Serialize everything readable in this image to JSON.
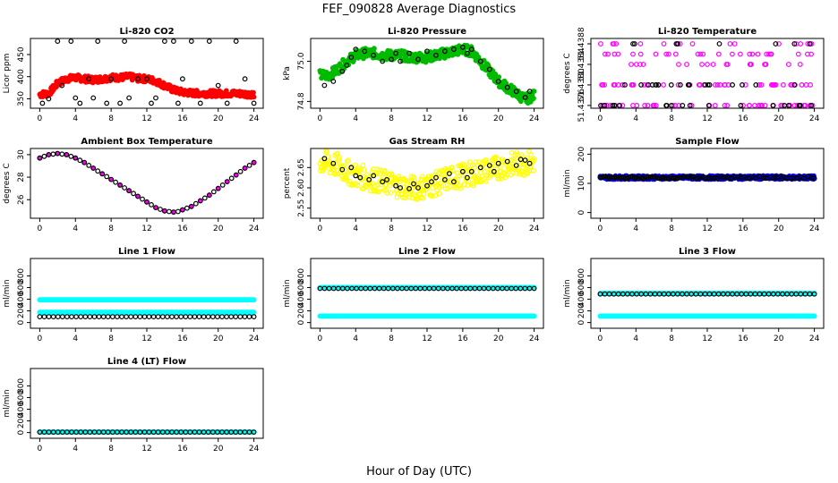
{
  "figure": {
    "title": "FEF_090828  Average Diagnostics",
    "xlabel": "Hour of Day (UTC)"
  },
  "chart_data": [
    {
      "type": "scatter",
      "title": "Li-820 CO2",
      "ylabel": "Licor ppm",
      "xlim": [
        0,
        24
      ],
      "ylim": [
        335,
        480
      ],
      "xticks": [
        "0",
        "4",
        "8",
        "12",
        "16",
        "20",
        "24"
      ],
      "yticks": [
        "350",
        "400",
        "450"
      ],
      "ytick_values": [
        350,
        400,
        450
      ],
      "series": [
        {
          "color": "#ff0000",
          "filled": true,
          "x": [
            0,
            1,
            2,
            3,
            4,
            5,
            6,
            7,
            8,
            9,
            10,
            11,
            12,
            13,
            14,
            15,
            16,
            17,
            18,
            19,
            20,
            21,
            22,
            23,
            24
          ],
          "y": [
            360,
            362,
            385,
            395,
            398,
            395,
            393,
            395,
            398,
            398,
            400,
            396,
            395,
            390,
            380,
            370,
            365,
            363,
            362,
            362,
            362,
            362,
            362,
            361,
            360
          ],
          "spread": 7
        },
        {
          "color": "#000000",
          "filled": false,
          "x": [
            0.3,
            1,
            2,
            2.5,
            3.5,
            4,
            4.5,
            5.5,
            6,
            6.5,
            7.5,
            8,
            9,
            9.5,
            10,
            11,
            12,
            12.5,
            13,
            14,
            15,
            15.5,
            16,
            17,
            18,
            19,
            20,
            21,
            22,
            23,
            24
          ],
          "y": [
            340,
            350,
            480,
            380,
            480,
            352,
            340,
            395,
            352,
            480,
            340,
            395,
            340,
            480,
            352,
            395,
            395,
            340,
            352,
            480,
            480,
            340,
            395,
            480,
            340,
            480,
            380,
            340,
            480,
            395,
            340
          ]
        }
      ]
    },
    {
      "type": "scatter",
      "title": "Li-820 Pressure",
      "ylabel": "kPa",
      "xlim": [
        0,
        24
      ],
      "ylim": [
        74.78,
        75.1
      ],
      "xticks": [
        "0",
        "4",
        "8",
        "12",
        "16",
        "20",
        "24"
      ],
      "yticks": [
        "74.8",
        "75.0"
      ],
      "ytick_values": [
        74.8,
        75.0
      ],
      "series": [
        {
          "color": "#00bb00",
          "filled": true,
          "x": [
            0,
            1,
            2,
            3,
            4,
            5,
            6,
            7,
            8,
            9,
            10,
            11,
            12,
            13,
            14,
            15,
            16,
            17,
            18,
            19,
            20,
            21,
            22,
            23,
            24
          ],
          "y": [
            74.93,
            74.93,
            74.96,
            75.0,
            75.03,
            75.04,
            75.04,
            75.03,
            75.03,
            75.03,
            75.02,
            75.02,
            75.02,
            75.03,
            75.04,
            75.05,
            75.06,
            75.05,
            75.0,
            74.95,
            74.9,
            74.87,
            74.84,
            74.81,
            74.83
          ],
          "spread": 0.025
        },
        {
          "color": "#000000",
          "filled": false,
          "x": [
            0.5,
            1.5,
            2.5,
            3,
            3.5,
            4,
            5,
            6,
            7,
            8,
            8.5,
            9,
            10,
            11,
            12,
            13,
            14,
            15,
            16,
            16.5,
            17,
            18,
            19,
            20,
            21,
            22,
            23,
            23.5
          ],
          "y": [
            74.88,
            74.9,
            74.95,
            74.98,
            75.02,
            75.06,
            75.05,
            75.03,
            75.0,
            75.01,
            75.04,
            75.0,
            75.04,
            75.01,
            75.05,
            75.03,
            75.05,
            75.06,
            75.07,
            75.04,
            75.06,
            75.0,
            74.96,
            74.9,
            74.87,
            74.85,
            74.82,
            74.85
          ]
        }
      ]
    },
    {
      "type": "scatter",
      "title": "Li-820 Temperature",
      "ylabel": "degrees C",
      "xlim": [
        0,
        24
      ],
      "ylim": [
        51.4376,
        51.43885
      ],
      "xticks": [
        "0",
        "4",
        "8",
        "12",
        "16",
        "20",
        "24"
      ],
      "yticks": [
        "51.4376",
        "51.4380",
        "51.4384",
        "51.4388"
      ],
      "ytick_values": [
        51.4376,
        51.438,
        51.4384,
        51.4388
      ],
      "series": [
        {
          "color": "#ff00ff",
          "filled": false,
          "levels": [
            51.4376,
            51.438,
            51.4384,
            51.4386,
            51.4388
          ]
        },
        {
          "color": "#000000",
          "filled": false,
          "levels": [
            51.4376,
            51.438,
            51.4388
          ]
        }
      ]
    },
    {
      "type": "scatter",
      "title": "Ambient Box Temperature",
      "ylabel": "degrees C",
      "xlim": [
        0,
        24
      ],
      "ylim": [
        24.6,
        30.3
      ],
      "xticks": [
        "0",
        "4",
        "8",
        "12",
        "16",
        "20",
        "24"
      ],
      "yticks": [
        "26",
        "28",
        "30"
      ],
      "ytick_values": [
        26,
        28,
        30
      ],
      "series": [
        {
          "color": "#ff00ff",
          "filled": true,
          "x": [
            0,
            1,
            2,
            3,
            4,
            5,
            6,
            7,
            8,
            9,
            10,
            11,
            12,
            13,
            14,
            15,
            16,
            17,
            18,
            19,
            20,
            21,
            22,
            23,
            24
          ],
          "y": [
            29.7,
            30.0,
            30.1,
            30.0,
            29.7,
            29.3,
            28.8,
            28.3,
            27.8,
            27.3,
            26.8,
            26.3,
            25.8,
            25.3,
            25.0,
            24.9,
            25.1,
            25.4,
            25.9,
            26.4,
            27.0,
            27.6,
            28.2,
            28.8,
            29.3
          ]
        },
        {
          "color": "#000000",
          "filled": false,
          "x": [
            0,
            0.5,
            1,
            1.5,
            2,
            2.5,
            3,
            3.5,
            4,
            4.5,
            5,
            5.5,
            6,
            6.5,
            7,
            7.5,
            8,
            8.5,
            9,
            9.5,
            10,
            10.5,
            11,
            11.5,
            12,
            12.5,
            13,
            13.5,
            14,
            14.5,
            15,
            15.5,
            16,
            16.5,
            17,
            17.5,
            18,
            18.5,
            19,
            19.5,
            20,
            20.5,
            21,
            21.5,
            22,
            22.5,
            23,
            23.5,
            24
          ],
          "y": [
            29.7,
            29.85,
            30.0,
            30.05,
            30.1,
            30.05,
            30.0,
            29.85,
            29.7,
            29.5,
            29.3,
            29.05,
            28.8,
            28.55,
            28.3,
            28.05,
            27.8,
            27.55,
            27.3,
            27.05,
            26.8,
            26.55,
            26.3,
            26.05,
            25.8,
            25.55,
            25.3,
            25.15,
            25.0,
            24.95,
            24.9,
            24.95,
            25.1,
            25.25,
            25.4,
            25.65,
            25.9,
            26.15,
            26.4,
            26.7,
            27.0,
            27.3,
            27.6,
            27.9,
            28.2,
            28.5,
            28.8,
            29.05,
            29.3
          ]
        }
      ]
    },
    {
      "type": "scatter",
      "title": "Gas Stream RH",
      "ylabel": "percent",
      "xlim": [
        0,
        24
      ],
      "ylim": [
        2.532,
        2.69
      ],
      "xticks": [
        "0",
        "4",
        "8",
        "12",
        "16",
        "20",
        "24"
      ],
      "yticks": [
        "2.55",
        "2.60",
        "2.65"
      ],
      "ytick_values": [
        2.55,
        2.6,
        2.65
      ],
      "series": [
        {
          "color": "#ffff00",
          "filled": false,
          "x": [
            0,
            1,
            2,
            3,
            4,
            5,
            6,
            7,
            8,
            9,
            10,
            11,
            12,
            13,
            14,
            15,
            16,
            17,
            18,
            19,
            20,
            21,
            22,
            23,
            24
          ],
          "y": [
            2.665,
            2.66,
            2.655,
            2.64,
            2.63,
            2.625,
            2.62,
            2.615,
            2.61,
            2.605,
            2.6,
            2.6,
            2.605,
            2.61,
            2.62,
            2.625,
            2.63,
            2.635,
            2.64,
            2.645,
            2.65,
            2.655,
            2.66,
            2.66,
            2.665
          ],
          "spread": 0.03
        },
        {
          "color": "#000000",
          "filled": false,
          "x": [
            0.5,
            1.5,
            2.5,
            3.5,
            4,
            4.5,
            5.5,
            6,
            7,
            7.5,
            8.5,
            9,
            10,
            10.5,
            11,
            12,
            12.5,
            13,
            14,
            14.5,
            15,
            16,
            16.5,
            17,
            18,
            19,
            19.5,
            20,
            21,
            22,
            22.5,
            23,
            23.5
          ],
          "y": [
            2.672,
            2.66,
            2.645,
            2.65,
            2.63,
            2.625,
            2.62,
            2.63,
            2.615,
            2.62,
            2.605,
            2.6,
            2.598,
            2.61,
            2.6,
            2.605,
            2.615,
            2.625,
            2.62,
            2.635,
            2.615,
            2.64,
            2.625,
            2.64,
            2.65,
            2.655,
            2.64,
            2.66,
            2.665,
            2.655,
            2.67,
            2.668,
            2.66
          ]
        }
      ]
    },
    {
      "type": "scatter",
      "title": "Sample Flow",
      "ylabel": "ml/min",
      "xlim": [
        0,
        24
      ],
      "ylim": [
        -10,
        210
      ],
      "xticks": [
        "0",
        "4",
        "8",
        "12",
        "16",
        "20",
        "24"
      ],
      "yticks": [
        "0",
        "100",
        "200"
      ],
      "ytick_values": [
        0,
        100,
        200
      ],
      "series": [
        {
          "color": "#0000ff",
          "filled": true,
          "x": [
            0,
            24
          ],
          "y": [
            120,
            120
          ],
          "spread": 6
        },
        {
          "color": "#000000",
          "filled": false,
          "x": [
            0,
            24
          ],
          "y": [
            120,
            120
          ],
          "spread": 4
        }
      ]
    },
    {
      "type": "scatter",
      "title": "Line 1 Flow",
      "ylabel": "ml/min",
      "xlim": [
        0,
        24
      ],
      "ylim": [
        -50,
        1050
      ],
      "xticks": [
        "0",
        "4",
        "8",
        "12",
        "16",
        "20",
        "24"
      ],
      "yticks": [
        "0",
        "200",
        "400",
        "600",
        "800"
      ],
      "ytick_values": [
        0,
        200,
        400,
        600,
        800
      ],
      "series": [
        {
          "color": "#00ffff",
          "filled": true,
          "x": [
            0,
            24
          ],
          "y": [
            390,
            390
          ]
        },
        {
          "color": "#00ffff",
          "filled": true,
          "x": [
            0,
            24
          ],
          "y": [
            175,
            175
          ]
        },
        {
          "color": "#000000",
          "filled": false,
          "x": [
            0,
            24
          ],
          "y": [
            100,
            100
          ]
        }
      ]
    },
    {
      "type": "scatter",
      "title": "Line 2 Flow",
      "ylabel": "ml/min",
      "xlim": [
        0,
        24
      ],
      "ylim": [
        -50,
        1050
      ],
      "xticks": [
        "0",
        "4",
        "8",
        "12",
        "16",
        "20",
        "24"
      ],
      "yticks": [
        "0",
        "200",
        "400",
        "600",
        "800"
      ],
      "ytick_values": [
        0,
        200,
        400,
        600,
        800
      ],
      "series": [
        {
          "color": "#00ffff",
          "filled": true,
          "x": [
            0,
            24
          ],
          "y": [
            600,
            600
          ]
        },
        {
          "color": "#00ffff",
          "filled": true,
          "x": [
            0,
            24
          ],
          "y": [
            110,
            110
          ]
        },
        {
          "color": "#000000",
          "filled": false,
          "x": [
            0,
            24
          ],
          "y": [
            585,
            585
          ]
        }
      ]
    },
    {
      "type": "scatter",
      "title": "Line 3 Flow",
      "ylabel": "ml/min",
      "xlim": [
        0,
        24
      ],
      "ylim": [
        -50,
        1050
      ],
      "xticks": [
        "0",
        "4",
        "8",
        "12",
        "16",
        "20",
        "24"
      ],
      "yticks": [
        "0",
        "200",
        "400",
        "600",
        "800"
      ],
      "ytick_values": [
        0,
        200,
        400,
        600,
        800
      ],
      "series": [
        {
          "color": "#00ffff",
          "filled": true,
          "x": [
            0,
            24
          ],
          "y": [
            500,
            500
          ]
        },
        {
          "color": "#00ffff",
          "filled": true,
          "x": [
            0,
            24
          ],
          "y": [
            110,
            110
          ]
        },
        {
          "color": "#000000",
          "filled": false,
          "x": [
            0,
            24
          ],
          "y": [
            490,
            490
          ]
        }
      ]
    },
    {
      "type": "scatter",
      "title": "Line 4 (LT) Flow",
      "ylabel": "ml/min",
      "xlim": [
        0,
        24
      ],
      "ylim": [
        -50,
        1050
      ],
      "xticks": [
        "0",
        "4",
        "8",
        "12",
        "16",
        "20",
        "24"
      ],
      "yticks": [
        "0",
        "200",
        "400",
        "600",
        "800"
      ],
      "ytick_values": [
        0,
        200,
        400,
        600,
        800
      ],
      "series": [
        {
          "color": "#00ffff",
          "filled": true,
          "x": [
            0,
            24
          ],
          "y": [
            10,
            10
          ]
        },
        {
          "color": "#000000",
          "filled": false,
          "x": [
            0,
            24
          ],
          "y": [
            8,
            8
          ]
        }
      ]
    }
  ]
}
